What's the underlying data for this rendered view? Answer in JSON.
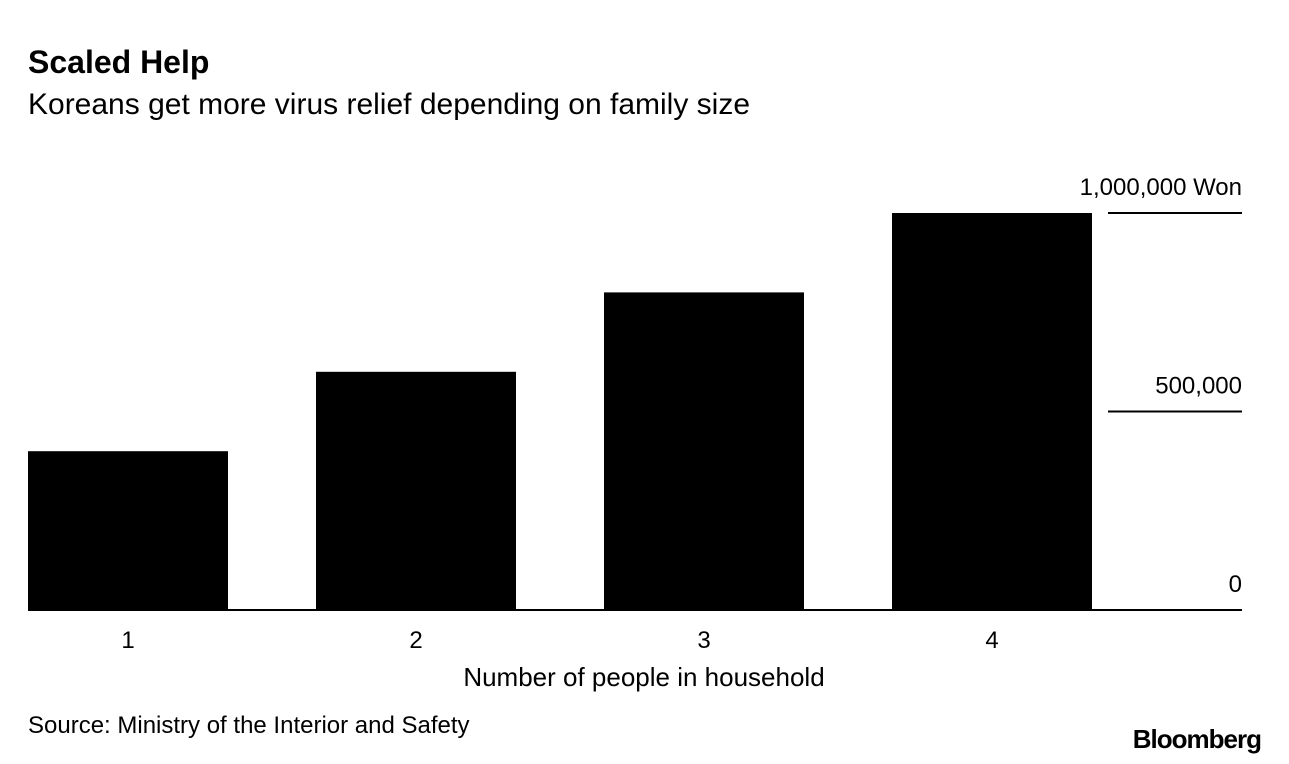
{
  "chart_data": {
    "type": "bar",
    "title": "Scaled Help",
    "subtitle": "Koreans get more virus relief depending on family size",
    "x_label": "Number of people in household",
    "source": "Source: Ministry of the Interior and Safety",
    "logo": "Bloomberg",
    "categories": [
      "1",
      "2",
      "3",
      "4"
    ],
    "values": [
      400000,
      600000,
      800000,
      1000000
    ],
    "color": "#000000",
    "ylim": [
      0,
      1000000
    ],
    "yticks": [
      0,
      {
        "value": 500000,
        "label": "500,000"
      },
      {
        "value": 1000000,
        "label": "1,000,000 Won"
      }
    ],
    "grid": true
  }
}
